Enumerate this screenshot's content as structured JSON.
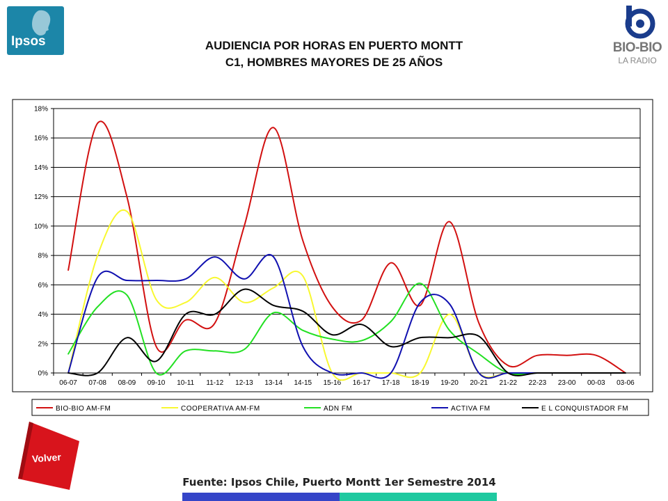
{
  "logos": {
    "left": {
      "text": "Ipsos",
      "icon": "ipsos-profile-icon"
    },
    "right": {
      "name": "BIO-BIO",
      "sub": "LA RADIO",
      "icon": "biobio-b-icon"
    }
  },
  "title": {
    "line1": "AUDIENCIA POR HORAS EN PUERTO MONTT",
    "line2": "C1, HOMBRES MAYORES DE 25 AÑOS"
  },
  "volver_label": "Volver",
  "source": "Fuente: Ipsos Chile, Puerto Montt 1er Semestre 2014",
  "colors": {
    "volver": "#d8141c",
    "bar_blue": "#3545c8",
    "bar_teal": "#1fc9a0"
  },
  "chart_data": {
    "type": "line",
    "categories": [
      "06-07",
      "07-08",
      "08-09",
      "09-10",
      "10-11",
      "11-12",
      "12-13",
      "13-14",
      "14-15",
      "15-16",
      "16-17",
      "17-18",
      "18-19",
      "19-20",
      "20-21",
      "21-22",
      "22-23",
      "23-00",
      "00-03",
      "03-06"
    ],
    "ylim": [
      0,
      18
    ],
    "yticks": [
      0,
      2,
      4,
      6,
      8,
      10,
      12,
      14,
      16,
      18
    ],
    "ytick_labels": [
      "0%",
      "2%",
      "4%",
      "6%",
      "8%",
      "10%",
      "12%",
      "14%",
      "16%",
      "18%"
    ],
    "grid": true,
    "legend": "bottom",
    "series": [
      {
        "name": "BIO-BIO AM-FM",
        "color": "#d21010",
        "values": [
          7.0,
          17.0,
          12.0,
          1.8,
          3.6,
          3.4,
          10.0,
          16.7,
          9.0,
          4.5,
          3.6,
          7.5,
          4.6,
          10.3,
          3.4,
          0.5,
          1.2,
          1.2,
          1.2,
          0.0
        ]
      },
      {
        "name": "COOPERATIVA AM-FM",
        "color": "#f8f830",
        "values": [
          0.0,
          8.0,
          11.0,
          5.0,
          4.8,
          6.5,
          4.8,
          5.8,
          6.6,
          0.0,
          0.0,
          0.0,
          0.0,
          4.0,
          0.0,
          0.0,
          0.0,
          0.0,
          0.0,
          0.0
        ]
      },
      {
        "name": "ADN FM",
        "color": "#22e022",
        "values": [
          1.3,
          4.5,
          5.3,
          0.0,
          1.5,
          1.5,
          1.6,
          4.1,
          2.9,
          2.3,
          2.2,
          3.5,
          6.1,
          2.9,
          1.3,
          0.0,
          0.0,
          0.0,
          0.0,
          0.0
        ]
      },
      {
        "name": "ACTIVA FM",
        "color": "#1010b0",
        "values": [
          0.0,
          6.5,
          6.3,
          6.3,
          6.4,
          7.9,
          6.4,
          7.9,
          1.8,
          0.0,
          0.0,
          0.0,
          4.8,
          4.7,
          0.0,
          0.0,
          0.0,
          0.0,
          0.0,
          0.0
        ]
      },
      {
        "name": "E L CONQUISTADOR FM",
        "color": "#000000",
        "values": [
          0.0,
          0.0,
          2.4,
          0.8,
          4.0,
          4.0,
          5.7,
          4.6,
          4.2,
          2.6,
          3.3,
          1.8,
          2.4,
          2.4,
          2.5,
          0.0,
          0.0,
          0.0,
          0.0,
          0.0
        ]
      }
    ]
  }
}
